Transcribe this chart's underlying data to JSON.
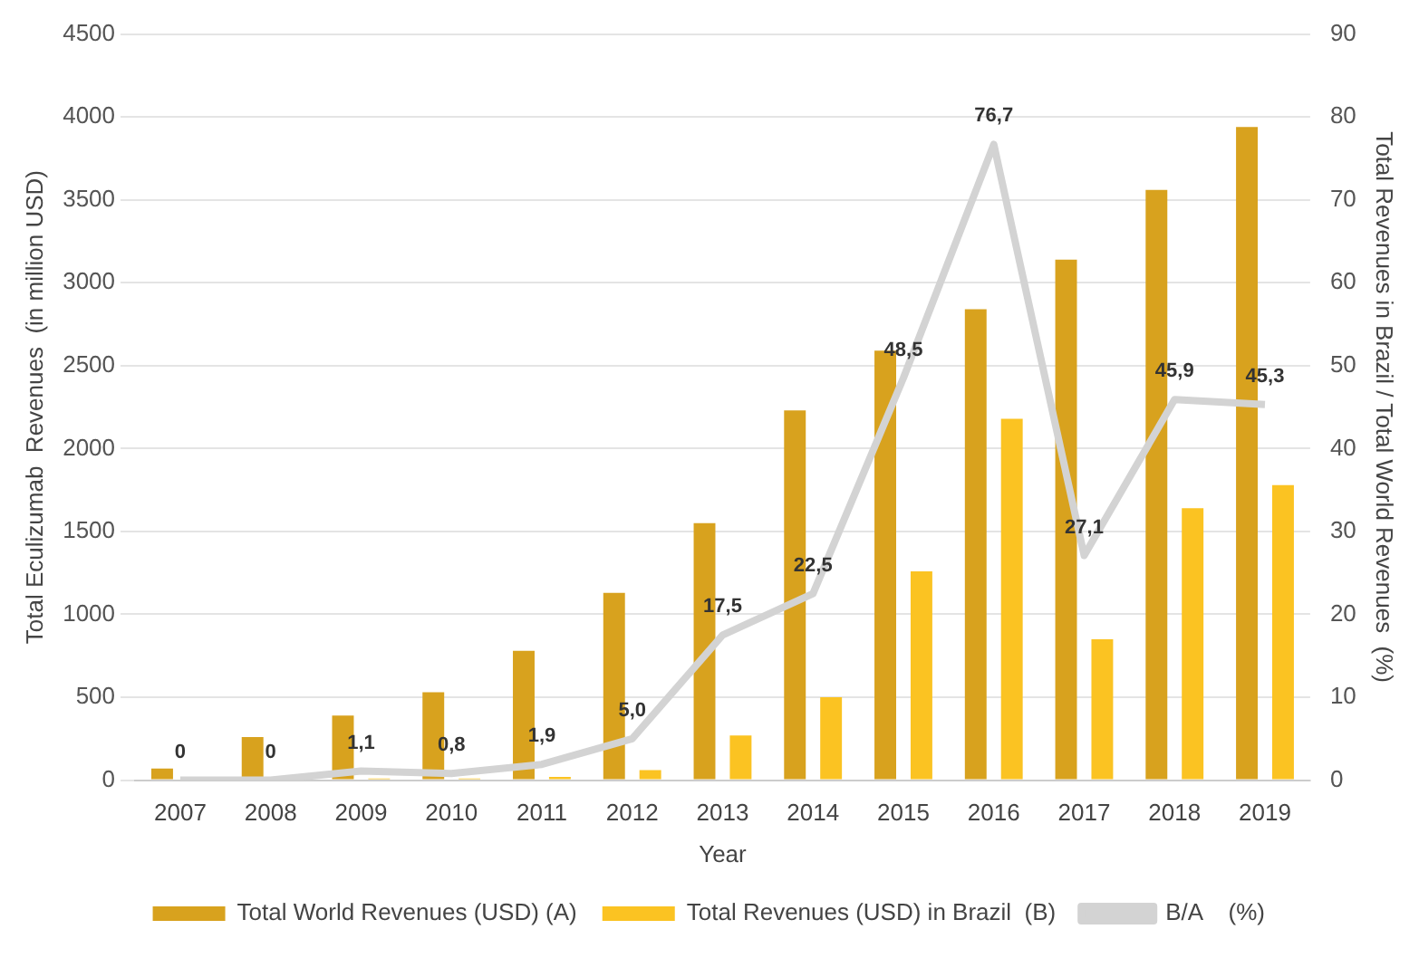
{
  "chart_data": {
    "type": "bar",
    "xlabel": "Year",
    "ylabel": "Total Eculizumab  Revenues  (in million USD)",
    "y2label": "Total Revenues in Brazil / Total World Revenues  (%)",
    "categories": [
      "2007",
      "2008",
      "2009",
      "2010",
      "2011",
      "2012",
      "2013",
      "2014",
      "2015",
      "2016",
      "2017",
      "2018",
      "2019"
    ],
    "series": [
      {
        "name": "Total World Revenues (USD) (A)",
        "color": "#d8a21e",
        "values": [
          70,
          260,
          390,
          530,
          780,
          1130,
          1550,
          2230,
          2590,
          2840,
          3140,
          3560,
          3940
        ]
      },
      {
        "name": "Total Revenues (USD) in Brazil  (B)",
        "color": "#fbc322",
        "values": [
          0,
          0,
          10,
          10,
          20,
          60,
          270,
          500,
          1260,
          2180,
          850,
          1640,
          1780
        ]
      },
      {
        "name": "B/A    (%)",
        "type": "line",
        "axis": "y2",
        "color": "#d3d3d3",
        "values": [
          0,
          0,
          1.1,
          0.8,
          1.9,
          5.0,
          17.5,
          22.5,
          48.5,
          76.7,
          27.1,
          45.9,
          45.3
        ],
        "value_labels": [
          "0",
          "0",
          "1,1",
          "0,8",
          "1,9",
          "5,0",
          "17,5",
          "22,5",
          "48,5",
          "76,7",
          "27,1",
          "45,9",
          "45,3"
        ]
      }
    ],
    "ylim": [
      0,
      4500
    ],
    "yticks": [
      0,
      500,
      1000,
      1500,
      2000,
      2500,
      3000,
      3500,
      4000,
      4500
    ],
    "y2lim": [
      0,
      90
    ],
    "y2ticks": [
      0,
      10,
      20,
      30,
      40,
      50,
      60,
      70,
      80,
      90
    ],
    "grid": "y",
    "legend": "bottom",
    "marker": "none"
  }
}
